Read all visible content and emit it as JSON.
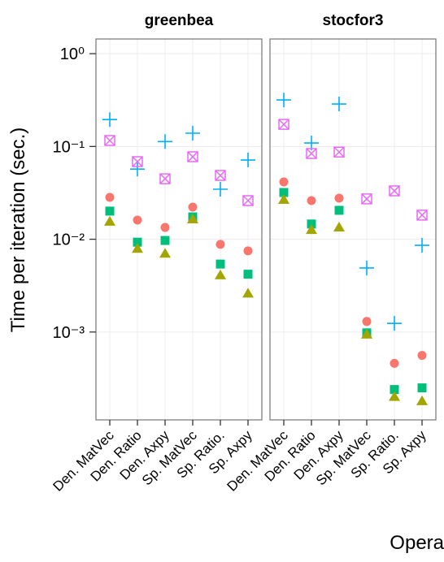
{
  "chart_data": {
    "type": "scatter",
    "ylabel": "Time per iteration (sec.)",
    "xlabel": "Opera",
    "log_y": true,
    "grid": true,
    "ylim": [
      0.000113,
      1.44
    ],
    "yticks": [
      {
        "value": 1,
        "label": "10⁰"
      },
      {
        "value": 0.1,
        "label": "10⁻¹"
      },
      {
        "value": 0.01,
        "label": "10⁻²"
      },
      {
        "value": 0.001,
        "label": "10⁻³"
      }
    ],
    "categories": [
      "Den. MatVec",
      "Den. Ratio",
      "Den. Axpy",
      "Sp. MatVec",
      "Sp. Ratio.",
      "Sp. Axpy"
    ],
    "facets": [
      {
        "title": "greenbea",
        "series": [
          {
            "color": "#00B0F6",
            "shape": "plus",
            "values": [
              0.195,
              0.057,
              0.113,
              0.139,
              0.0346,
              0.0714
            ]
          },
          {
            "color": "#E76BF3",
            "shape": "boxx",
            "values": [
              0.116,
              0.0686,
              0.0449,
              0.0774,
              0.0487,
              0.0261
            ]
          },
          {
            "color": "#F8766D",
            "shape": "circle",
            "values": [
              0.0283,
              0.0161,
              0.0134,
              0.0222,
              0.0088,
              0.0075
            ]
          },
          {
            "color": "#00BF7D",
            "shape": "square",
            "values": [
              0.0201,
              0.0093,
              0.0097,
              0.0174,
              0.0054,
              0.0042
            ]
          },
          {
            "color": "#A3A500",
            "shape": "triangle",
            "values": [
              0.0155,
              0.0079,
              0.007,
              0.0164,
              0.0041,
              0.0026
            ]
          }
        ]
      },
      {
        "title": "stocfor3",
        "series": [
          {
            "color": "#00B0F6",
            "shape": "plus",
            "values": [
              0.317,
              0.109,
              0.287,
              0.0049,
              0.00124,
              0.0086
            ]
          },
          {
            "color": "#E76BF3",
            "shape": "boxx",
            "values": [
              0.173,
              0.084,
              0.087,
              0.0272,
              0.0332,
              0.0182
            ]
          },
          {
            "color": "#F8766D",
            "shape": "circle",
            "values": [
              0.0415,
              0.0261,
              0.0277,
              0.0013,
              0.00046,
              0.00056
            ]
          },
          {
            "color": "#00BF7D",
            "shape": "square",
            "values": [
              0.0319,
              0.0146,
              0.0205,
              0.00098,
              0.00024,
              0.00025
            ]
          },
          {
            "color": "#A3A500",
            "shape": "triangle",
            "values": [
              0.0266,
              0.0126,
              0.0134,
              0.00094,
              0.0002,
              0.00018
            ]
          }
        ]
      }
    ]
  }
}
